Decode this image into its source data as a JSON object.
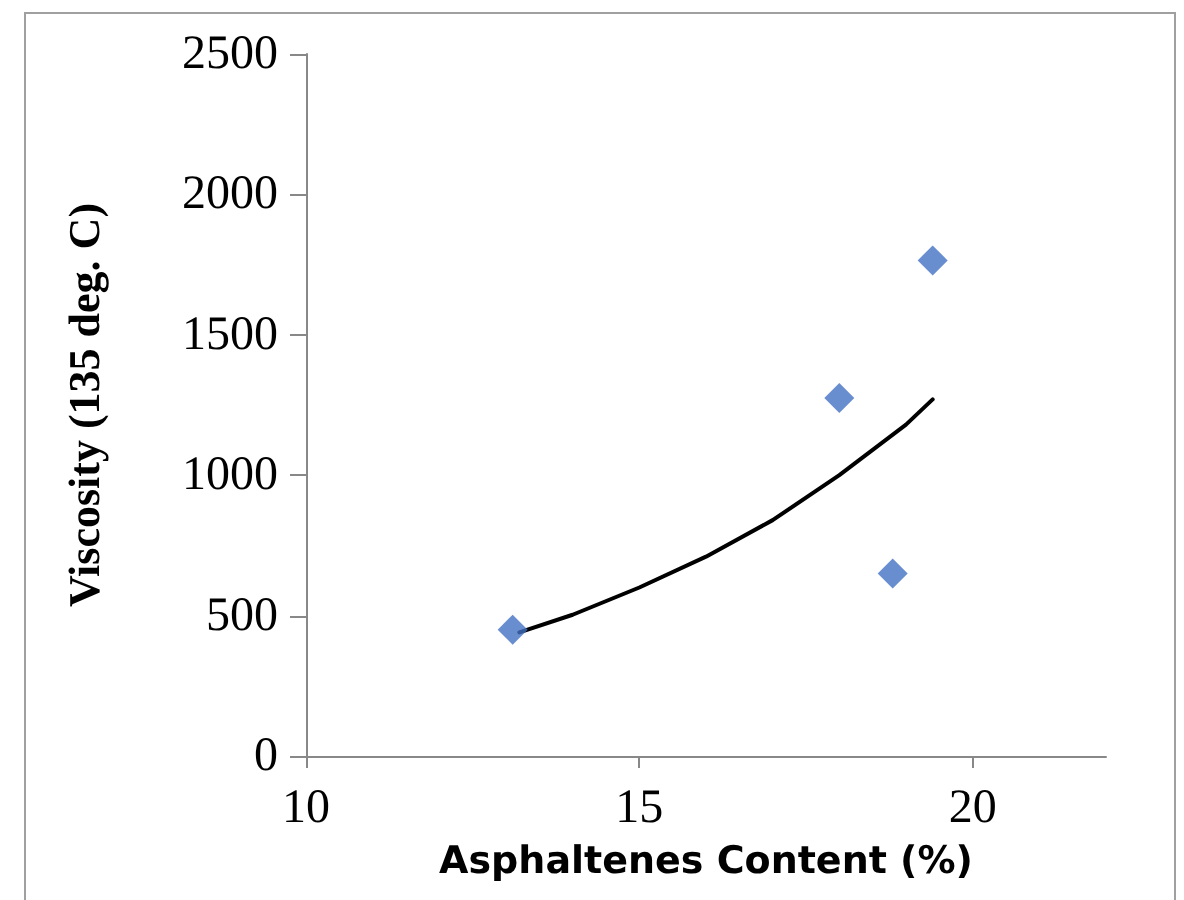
{
  "chart_data": {
    "type": "scatter",
    "xlabel": "Asphaltenes Content (%)",
    "ylabel": "Viscosity (135 deg. C)",
    "marker": "diamond",
    "grid": false,
    "xlim": [
      10,
      22
    ],
    "xticks": [
      10,
      15,
      20
    ],
    "ylim": [
      0,
      2500
    ],
    "yticks": [
      0,
      500,
      1000,
      1500,
      2000,
      2500
    ],
    "series": [
      {
        "color": "#4472c4",
        "x": [
          13.1,
          18.0,
          18.8,
          19.4
        ],
        "values": [
          450,
          1275,
          650,
          1765
        ]
      },
      {
        "type": "line",
        "color": "#000000",
        "marker": "none",
        "line_style": "solid",
        "x": [
          13.2,
          14,
          15,
          16,
          17,
          18,
          19,
          19.4
        ],
        "values": [
          440,
          503,
          600,
          710,
          840,
          1000,
          1180,
          1270
        ]
      }
    ]
  }
}
